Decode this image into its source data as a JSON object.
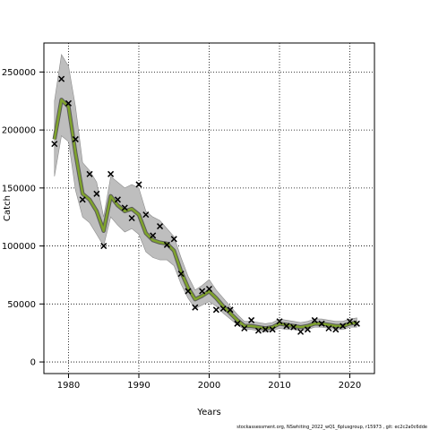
{
  "chart_data": {
    "type": "line",
    "xlabel": "Years",
    "ylabel": "Catch",
    "footer": "stockassessment.org, NSwhiting_2022_wQ1_6plusgroup, r15973 , git: ec2c2a0c6dde",
    "xlim": [
      1976.5,
      2023.5
    ],
    "ylim": [
      -10000,
      275000
    ],
    "x_ticks": [
      1980,
      1990,
      2000,
      2010,
      2020
    ],
    "y_ticks": [
      0,
      50000,
      100000,
      150000,
      200000,
      250000
    ],
    "x_tick_labels": [
      "1980",
      "1990",
      "2000",
      "2010",
      "2020"
    ],
    "y_tick_labels": [
      "0",
      "50000",
      "100000",
      "150000",
      "200000",
      "250000"
    ],
    "grid": true,
    "colors": {
      "band": "#bebebe",
      "band_edge": "#8c8c8c",
      "line_inner": "#7fa32c",
      "line_outer": "#5a5a5a",
      "marker": "#000000"
    },
    "years": [
      1978,
      1979,
      1980,
      1981,
      1982,
      1983,
      1984,
      1985,
      1986,
      1987,
      1988,
      1989,
      1990,
      1991,
      1992,
      1993,
      1994,
      1995,
      1996,
      1997,
      1998,
      1999,
      2000,
      2001,
      2002,
      2003,
      2004,
      2005,
      2006,
      2007,
      2008,
      2009,
      2010,
      2011,
      2012,
      2013,
      2014,
      2015,
      2016,
      2017,
      2018,
      2019,
      2020,
      2021
    ],
    "series": [
      {
        "kind": "estimate",
        "values": [
          192000,
          226000,
          220000,
          180000,
          145000,
          140000,
          130000,
          113000,
          143000,
          135000,
          130000,
          132000,
          127000,
          111000,
          105000,
          103000,
          102000,
          96000,
          78000,
          64000,
          54000,
          57000,
          61000,
          55000,
          48000,
          42000,
          36000,
          31000,
          31000,
          30000,
          29000,
          30000,
          33000,
          32000,
          31000,
          30000,
          31000,
          33000,
          33000,
          32000,
          31000,
          31000,
          33000,
          34000
        ]
      },
      {
        "kind": "band_upper",
        "values": [
          225000,
          265000,
          255000,
          220000,
          172000,
          165000,
          155000,
          125000,
          160000,
          155000,
          150000,
          153000,
          150000,
          130000,
          125000,
          122000,
          115000,
          108000,
          90000,
          74000,
          62000,
          66000,
          71000,
          62000,
          55000,
          48000,
          41000,
          35000,
          35000,
          34000,
          33000,
          34000,
          37000,
          36000,
          35000,
          34000,
          35000,
          37000,
          37000,
          36000,
          35000,
          35000,
          37000,
          38000
        ]
      },
      {
        "kind": "band_lower",
        "values": [
          160000,
          195000,
          190000,
          148000,
          125000,
          120000,
          110000,
          100000,
          125000,
          118000,
          112000,
          115000,
          110000,
          95000,
          90000,
          88000,
          88000,
          83000,
          67000,
          55000,
          46000,
          49000,
          52000,
          48000,
          42000,
          37000,
          32000,
          28000,
          28000,
          27000,
          26000,
          27000,
          29000,
          28000,
          28000,
          27000,
          28000,
          30000,
          30000,
          29000,
          28000,
          28000,
          30000,
          30000
        ]
      },
      {
        "kind": "observed",
        "values": [
          188000,
          244000,
          223000,
          192000,
          140000,
          162000,
          145000,
          100000,
          162000,
          140000,
          133000,
          124000,
          153000,
          127000,
          109000,
          117000,
          101000,
          106000,
          76000,
          61000,
          47000,
          61000,
          63000,
          45000,
          46000,
          45000,
          33000,
          29000,
          36000,
          27000,
          28000,
          28000,
          35000,
          31000,
          30000,
          26000,
          28000,
          36000,
          33000,
          29000,
          28000,
          31000,
          35000,
          33000
        ]
      }
    ]
  }
}
